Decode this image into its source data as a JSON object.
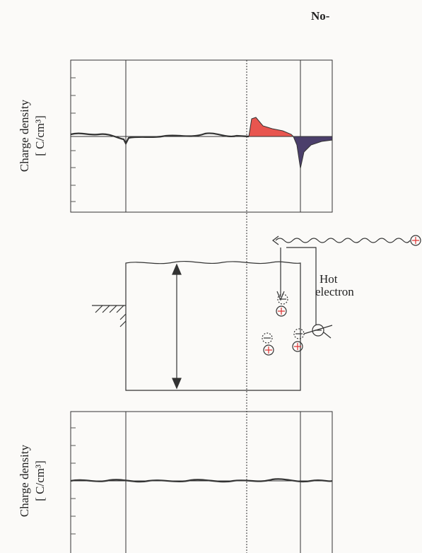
{
  "header": {
    "title": "No-"
  },
  "panels": [
    {
      "ylabel": "Charge density",
      "unit": "[ C/cm³]"
    },
    {
      "ylabel": "Charge density",
      "unit": "[ C/cm³]"
    }
  ],
  "labels": {
    "hot_electron": [
      "Hot",
      "electron"
    ]
  }
}
